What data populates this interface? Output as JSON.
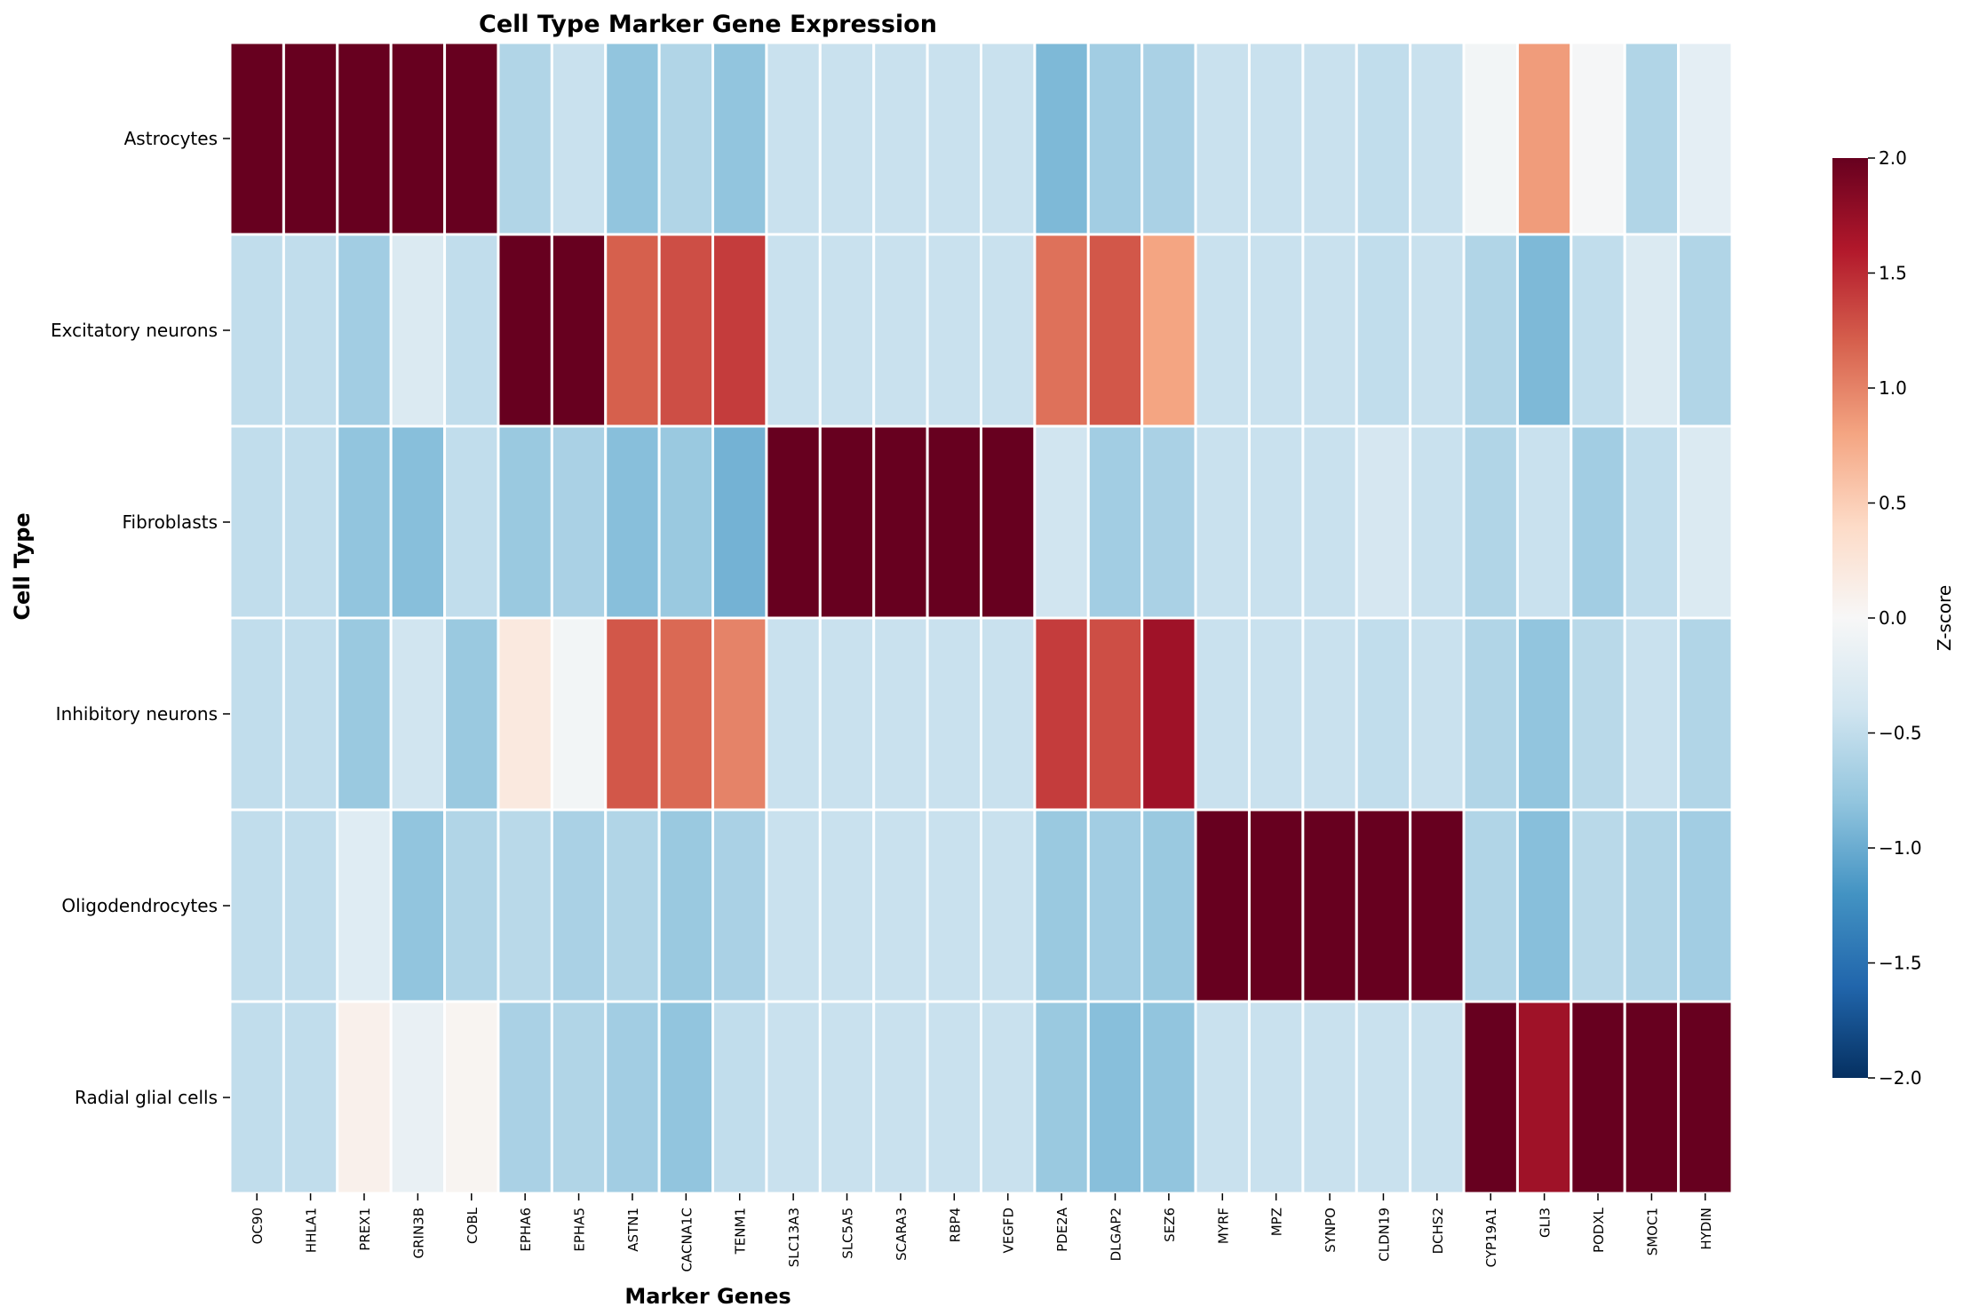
{
  "chart_data": {
    "type": "heatmap",
    "title": "Cell Type Marker Gene Expression",
    "xlabel": "Marker Genes",
    "ylabel": "Cell Type",
    "colorbar_label": "Z-score",
    "colormap": "RdBu_r",
    "vmin": -2.0,
    "vmax": 2.0,
    "colorbar_ticks": [
      "2.0",
      "1.5",
      "1.0",
      "0.5",
      "0.0",
      "−0.5",
      "−1.0",
      "−1.5",
      "−2.0"
    ],
    "colorbar_tick_values": [
      2.0,
      1.5,
      1.0,
      0.5,
      0.0,
      -0.5,
      -1.0,
      -1.5,
      -2.0
    ],
    "rows": [
      "Astrocytes",
      "Excitatory neurons",
      "Fibroblasts",
      "Inhibitory neurons",
      "Oligodendrocytes",
      "Radial glial cells"
    ],
    "columns": [
      "OC90",
      "HHLA1",
      "PREX1",
      "GRIN3B",
      "COBL",
      "EPHA6",
      "EPHA5",
      "ASTN1",
      "CACNA1C",
      "TENM1",
      "SLC13A3",
      "SLC5A5",
      "SCARA3",
      "RBP4",
      "VEGFD",
      "PDE2A",
      "DLGAP2",
      "SEZ6",
      "MYRF",
      "MPZ",
      "SYNPO",
      "CLDN19",
      "DCHS2",
      "CYP19A1",
      "GLI3",
      "PODXL",
      "SMOC1",
      "HYDIN"
    ],
    "values": [
      [
        2.0,
        2.0,
        2.0,
        2.0,
        2.0,
        -0.6,
        -0.45,
        -0.8,
        -0.6,
        -0.8,
        -0.45,
        -0.45,
        -0.45,
        -0.45,
        -0.45,
        -0.9,
        -0.7,
        -0.65,
        -0.45,
        -0.45,
        -0.45,
        -0.5,
        -0.45,
        -0.05,
        0.85,
        -0.02,
        -0.6,
        -0.2
      ],
      [
        -0.5,
        -0.5,
        -0.7,
        -0.3,
        -0.5,
        2.0,
        2.0,
        1.2,
        1.3,
        1.4,
        -0.45,
        -0.45,
        -0.45,
        -0.45,
        -0.45,
        1.1,
        1.25,
        0.8,
        -0.45,
        -0.45,
        -0.45,
        -0.5,
        -0.45,
        -0.6,
        -0.9,
        -0.5,
        -0.3,
        -0.6
      ],
      [
        -0.5,
        -0.5,
        -0.8,
        -0.85,
        -0.5,
        -0.75,
        -0.65,
        -0.85,
        -0.75,
        -0.95,
        2.0,
        2.0,
        2.0,
        2.0,
        2.0,
        -0.4,
        -0.7,
        -0.65,
        -0.45,
        -0.45,
        -0.45,
        -0.35,
        -0.45,
        -0.6,
        -0.45,
        -0.7,
        -0.5,
        -0.3
      ],
      [
        -0.5,
        -0.5,
        -0.75,
        -0.4,
        -0.75,
        0.2,
        -0.05,
        1.25,
        1.15,
        1.0,
        -0.45,
        -0.45,
        -0.45,
        -0.45,
        -0.45,
        1.4,
        1.3,
        1.7,
        -0.45,
        -0.45,
        -0.45,
        -0.5,
        -0.45,
        -0.6,
        -0.8,
        -0.55,
        -0.45,
        -0.6
      ],
      [
        -0.5,
        -0.5,
        -0.25,
        -0.8,
        -0.6,
        -0.55,
        -0.65,
        -0.6,
        -0.75,
        -0.65,
        -0.45,
        -0.45,
        -0.45,
        -0.45,
        -0.45,
        -0.75,
        -0.7,
        -0.75,
        2.0,
        2.0,
        2.0,
        2.0,
        2.0,
        -0.6,
        -0.85,
        -0.55,
        -0.6,
        -0.7
      ],
      [
        -0.5,
        -0.5,
        0.1,
        -0.15,
        0.05,
        -0.65,
        -0.6,
        -0.7,
        -0.8,
        -0.5,
        -0.45,
        -0.45,
        -0.45,
        -0.45,
        -0.45,
        -0.75,
        -0.85,
        -0.8,
        -0.45,
        -0.45,
        -0.45,
        -0.45,
        -0.45,
        2.0,
        1.7,
        2.0,
        2.0,
        2.0
      ]
    ]
  }
}
